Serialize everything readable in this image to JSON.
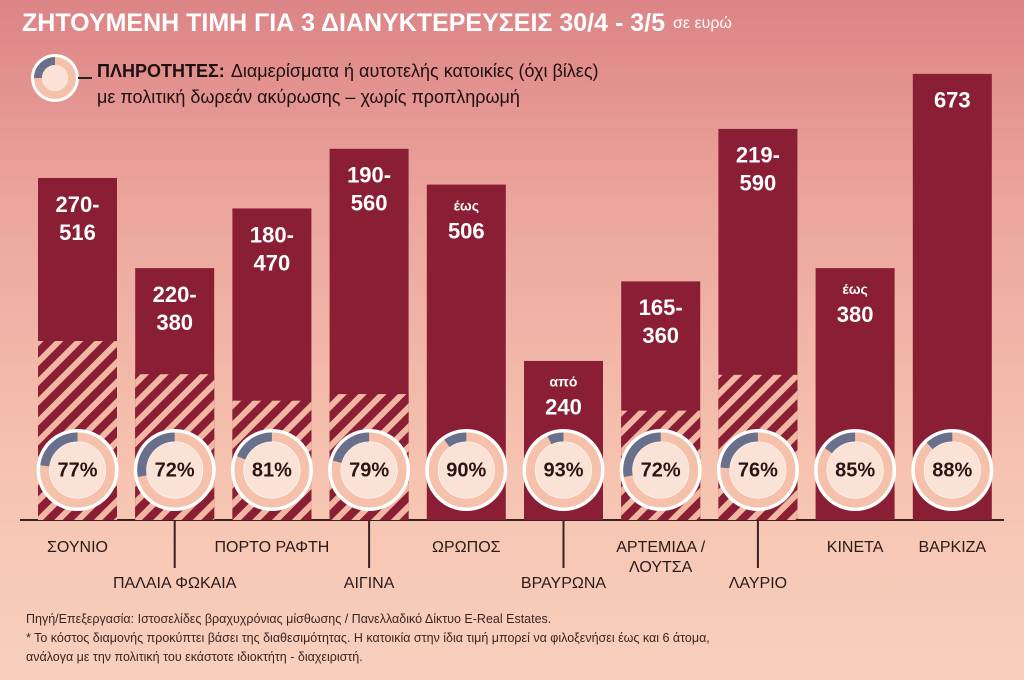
{
  "chart_data": {
    "type": "bar",
    "title": "ΖΗΤΟΥΜΕΝΗ ΤΙΜΗ ΓΙΑ 3 ΔΙΑΝΥΚΤΕΡΕΥΣΕΙΣ 30/4 - 3/5",
    "subtitle": "σε ευρώ",
    "legend": {
      "label": "ΠΛΗΡΟΤΗΤΕΣ:",
      "lines": [
        "Διαμερίσματα ή αυτοτελής κατοικίες (όχι βίλες)",
        "με πολιτική δωρεάν ακύρωσης – χωρίς προπληρωμή"
      ]
    },
    "categories": [
      "ΣΟΥΝΙΟ",
      "ΠΑΛΑΙΑ ΦΩΚΑΙΑ",
      "ΠΟΡΤΟ ΡΑΦΤΗ",
      "ΑΙΓΙΝΑ",
      "ΩΡΩΠΟΣ",
      "ΒΡΑΥΡΩΝΑ",
      "ΑΡΤΕΜΙΔΑ / ΛΟΥΤΣΑ",
      "ΛΑΥΡΙΟ",
      "ΚΙΝΕΤΑ",
      "ΒΑΡΚΙΖΑ"
    ],
    "values": [
      516,
      380,
      470,
      560,
      506,
      240,
      360,
      590,
      380,
      673
    ],
    "low_values": [
      270,
      220,
      180,
      190,
      null,
      null,
      165,
      219,
      null,
      null
    ],
    "value_labels": [
      [
        "270-",
        "516"
      ],
      [
        "220-",
        "380"
      ],
      [
        "180-",
        "470"
      ],
      [
        "190-",
        "560"
      ],
      [
        "έως",
        "506"
      ],
      [
        "από",
        "240"
      ],
      [
        "165-",
        "360"
      ],
      [
        "219-",
        "590"
      ],
      [
        "έως",
        "380"
      ],
      [
        "673"
      ]
    ],
    "occupancy": {
      "values": [
        77,
        72,
        81,
        79,
        90,
        93,
        72,
        76,
        85,
        88
      ],
      "value_labels": [
        "77%",
        "72%",
        "81%",
        "79%",
        "90%",
        "93%",
        "72%",
        "76%",
        "85%",
        "88%"
      ]
    },
    "color": "#8a1e34",
    "ylim": [
      0,
      700
    ],
    "notes": [
      "Πηγή/Επεξεργασία: Ιστοσελίδες βραχυχρόνιας μίσθωσης / Πανελλαδικό Δίκτυο E-Real Estates.",
      "* Το κόστος διαμονής προκύπτει βάσει της διαθεσιμότητας. Η κατοικία στην ίδια τιμή μπορεί να φιλοξενήσει έως και 6 άτομα,",
      "ανάλογα με την πολιτική του εκάστοτε ιδιοκτήτη - διαχειριστή."
    ]
  }
}
